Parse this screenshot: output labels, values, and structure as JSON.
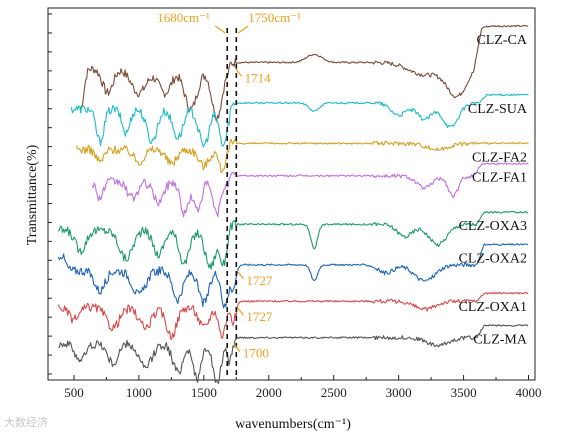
{
  "chart_data": {
    "type": "line",
    "title": "",
    "xlabel": "wavenumbers(cm⁻¹)",
    "ylabel": "Transmittance(%)",
    "xlim": [
      300,
      4050
    ],
    "x_ticks": [
      500,
      1000,
      1500,
      2000,
      2500,
      3000,
      3500,
      4000
    ],
    "y_ticks_labeled": false,
    "stacked_offset": true,
    "grid": false,
    "legend": "labels at right end of each trace",
    "series": [
      {
        "name": "CLZ-CA",
        "color": "#7b4a3a",
        "baseline": 7.6,
        "x_start": 550,
        "x_end": 4000,
        "features": [
          [
            550,
            1.0,
            25
          ],
          [
            760,
            0.6,
            40
          ],
          [
            1000,
            0.6,
            60
          ],
          [
            1200,
            0.6,
            50
          ],
          [
            1400,
            1.0,
            50
          ],
          [
            1600,
            1.2,
            40
          ],
          [
            2350,
            -0.2,
            60
          ],
          [
            3200,
            0.3,
            120
          ],
          [
            3450,
            0.8,
            80
          ]
        ],
        "plateau": {
          "x": 3580,
          "height": 0.9
        }
      },
      {
        "name": "CLZ-SUA",
        "color": "#1fbcc8",
        "baseline": 6.6,
        "x_start": 480,
        "x_end": 4000,
        "features": [
          [
            700,
            0.8,
            30
          ],
          [
            900,
            0.6,
            30
          ],
          [
            1100,
            0.8,
            40
          ],
          [
            1300,
            0.7,
            40
          ],
          [
            1500,
            0.9,
            40
          ],
          [
            1650,
            0.9,
            30
          ],
          [
            2350,
            0.2,
            40
          ],
          [
            3000,
            0.3,
            60
          ],
          [
            3200,
            0.4,
            60
          ],
          [
            3400,
            0.6,
            60
          ]
        ],
        "plateau": {
          "x": 3620,
          "height": 0.2
        }
      },
      {
        "name": "CLZ-FA2",
        "color": "#d4a020",
        "baseline": 5.6,
        "x_start": 520,
        "x_end": 4000,
        "features": [
          [
            700,
            0.3,
            30
          ],
          [
            1000,
            0.3,
            40
          ],
          [
            1250,
            0.35,
            40
          ],
          [
            1500,
            0.4,
            40
          ],
          [
            1640,
            0.5,
            25
          ],
          [
            3300,
            0.15,
            80
          ]
        ],
        "plateau": null
      },
      {
        "name": "CLZ-FA1",
        "color": "#c070e0",
        "baseline": 4.8,
        "x_start": 640,
        "x_end": 4000,
        "features": [
          [
            700,
            0.4,
            25
          ],
          [
            950,
            0.4,
            40
          ],
          [
            1150,
            0.5,
            40
          ],
          [
            1350,
            0.8,
            30
          ],
          [
            1450,
            0.7,
            30
          ],
          [
            1600,
            0.8,
            30
          ],
          [
            3200,
            0.3,
            60
          ],
          [
            3420,
            0.5,
            40
          ]
        ],
        "plateau": {
          "x": 3580,
          "height": 0.3
        }
      },
      {
        "name": "CLZ-OXA3",
        "color": "#1e9a6a",
        "baseline": 3.6,
        "x_start": 380,
        "x_end": 4000,
        "features": [
          [
            550,
            0.5,
            40
          ],
          [
            900,
            0.7,
            50
          ],
          [
            1150,
            0.6,
            40
          ],
          [
            1350,
            0.8,
            40
          ],
          [
            1550,
            0.9,
            40
          ],
          [
            1650,
            0.8,
            25
          ],
          [
            2350,
            0.6,
            25
          ],
          [
            3050,
            0.3,
            60
          ],
          [
            3300,
            0.5,
            70
          ]
        ],
        "plateau": {
          "x": 3600,
          "height": 0.3
        }
      },
      {
        "name": "CLZ-OXA2",
        "color": "#1e64b4",
        "baseline": 2.6,
        "x_start": 380,
        "x_end": 4000,
        "features": [
          [
            400,
            -0.4,
            30
          ],
          [
            700,
            0.5,
            40
          ],
          [
            1000,
            0.6,
            50
          ],
          [
            1300,
            0.7,
            40
          ],
          [
            1500,
            0.8,
            40
          ],
          [
            1660,
            0.9,
            25
          ],
          [
            1727,
            0.6,
            20
          ],
          [
            2350,
            0.4,
            25
          ],
          [
            2900,
            0.2,
            60
          ],
          [
            3200,
            0.4,
            80
          ]
        ],
        "plateau": {
          "x": 3600,
          "height": 0.5
        }
      },
      {
        "name": "CLZ-OXA1",
        "color": "#d84848",
        "baseline": 1.7,
        "x_start": 380,
        "x_end": 4000,
        "features": [
          [
            500,
            0.3,
            40
          ],
          [
            800,
            0.5,
            50
          ],
          [
            1050,
            0.5,
            50
          ],
          [
            1250,
            0.7,
            40
          ],
          [
            1500,
            0.5,
            40
          ],
          [
            1640,
            0.7,
            25
          ],
          [
            1727,
            0.5,
            20
          ],
          [
            3200,
            0.2,
            80
          ]
        ],
        "plateau": {
          "x": 3600,
          "height": 0.2
        }
      },
      {
        "name": "CLZ-MA",
        "color": "#555555",
        "baseline": 0.8,
        "x_start": 380,
        "x_end": 4000,
        "features": [
          [
            550,
            0.4,
            40
          ],
          [
            800,
            0.5,
            40
          ],
          [
            1050,
            0.6,
            50
          ],
          [
            1300,
            0.7,
            40
          ],
          [
            1450,
            0.9,
            30
          ],
          [
            1600,
            1.0,
            30
          ],
          [
            1700,
            0.5,
            20
          ],
          [
            3300,
            0.2,
            80
          ]
        ],
        "plateau": {
          "x": 3600,
          "height": 0.3
        }
      }
    ],
    "reference_lines": [
      {
        "x": 1680,
        "label": "1680cm⁻¹",
        "style": "dashed"
      },
      {
        "x": 1750,
        "label": "1750cm⁻¹",
        "style": "dashed"
      }
    ],
    "annotations": [
      {
        "text": "1714",
        "x": 1714,
        "series": "CLZ-CA"
      },
      {
        "text": "1727",
        "x": 1727,
        "series": "CLZ-OXA2"
      },
      {
        "text": "1727",
        "x": 1727,
        "series": "CLZ-OXA1"
      },
      {
        "text": "1700",
        "x": 1700,
        "series": "CLZ-MA"
      }
    ],
    "annotation_color": "#f0a020"
  },
  "watermark_text": "大数经济"
}
